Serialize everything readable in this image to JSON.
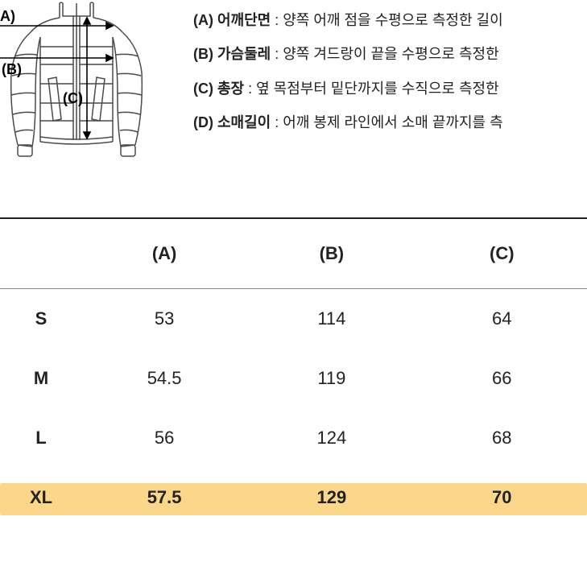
{
  "diagram": {
    "labels": {
      "A": "A)",
      "B": "(B)",
      "C": "(C)"
    },
    "stroke_color": "#4a4a4a",
    "stroke_width": 1.5,
    "arrow_stroke": "#000000"
  },
  "descriptions": [
    {
      "label": "(A) 어깨단면",
      "text": " : 양쪽 어깨 점을 수평으로 측정한 길이"
    },
    {
      "label": "(B) 가슴둘레",
      "text": " : 양쪽 겨드랑이 끝을 수평으로 측정한"
    },
    {
      "label": "(C) 총장",
      "text": " : 옆 목점부터 밑단까지를 수직으로 측정한"
    },
    {
      "label": "(D) 소매길이",
      "text": " : 어깨 봉제 라인에서 소매 끝까지를 측"
    }
  ],
  "table": {
    "headers": [
      "",
      "(A)",
      "(B)",
      "(C)"
    ],
    "rows": [
      {
        "size": "S",
        "a": "53",
        "b": "114",
        "c": "64"
      },
      {
        "size": "M",
        "a": "54.5",
        "b": "119",
        "c": "66"
      },
      {
        "size": "L",
        "a": "56",
        "b": "124",
        "c": "68"
      },
      {
        "size": "XL",
        "a": "57.5",
        "b": "129",
        "c": "70"
      }
    ],
    "highlight_row_index": 3,
    "highlight_color": "#fbd78b",
    "border_top_color": "#222222",
    "border_header_color": "#888888",
    "header_fontsize": 22,
    "cell_fontsize": 22,
    "background_color": "#ffffff"
  }
}
